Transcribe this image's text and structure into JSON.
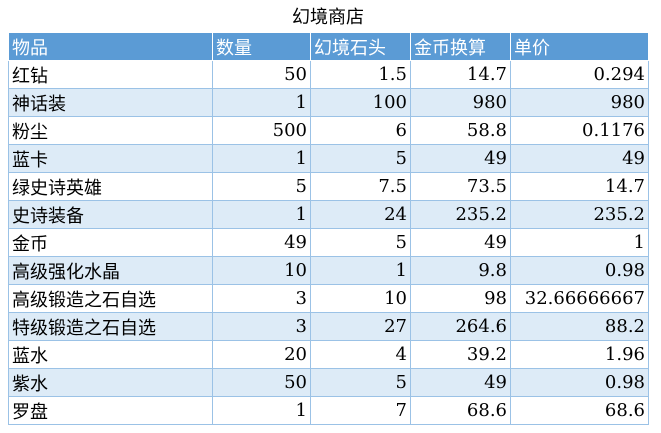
{
  "title": "幻境商店",
  "table": {
    "header": [
      "物品",
      "数量",
      "幻境石头",
      "金币换算",
      "单价"
    ],
    "rows": [
      [
        "红钻",
        "50",
        "1.5",
        "14.7",
        "0.294"
      ],
      [
        "神话装",
        "1",
        "100",
        "980",
        "980"
      ],
      [
        "粉尘",
        "500",
        "6",
        "58.8",
        "0.1176"
      ],
      [
        "蓝卡",
        "1",
        "5",
        "49",
        "49"
      ],
      [
        "绿史诗英雄",
        "5",
        "7.5",
        "73.5",
        "14.7"
      ],
      [
        "史诗装备",
        "1",
        "24",
        "235.2",
        "235.2"
      ],
      [
        "金币",
        "49",
        "5",
        "49",
        "1"
      ],
      [
        "高级强化水晶",
        "10",
        "1",
        "9.8",
        "0.98"
      ],
      [
        "高级锻造之石自选",
        "3",
        "10",
        "98",
        "32.66666667"
      ],
      [
        "特级锻造之石自选",
        "3",
        "27",
        "264.6",
        "88.2"
      ],
      [
        "蓝水",
        "20",
        "4",
        "39.2",
        "1.96"
      ],
      [
        "紫水",
        "50",
        "5",
        "49",
        "0.98"
      ],
      [
        "罗盘",
        "1",
        "7",
        "68.6",
        "68.6"
      ]
    ]
  }
}
